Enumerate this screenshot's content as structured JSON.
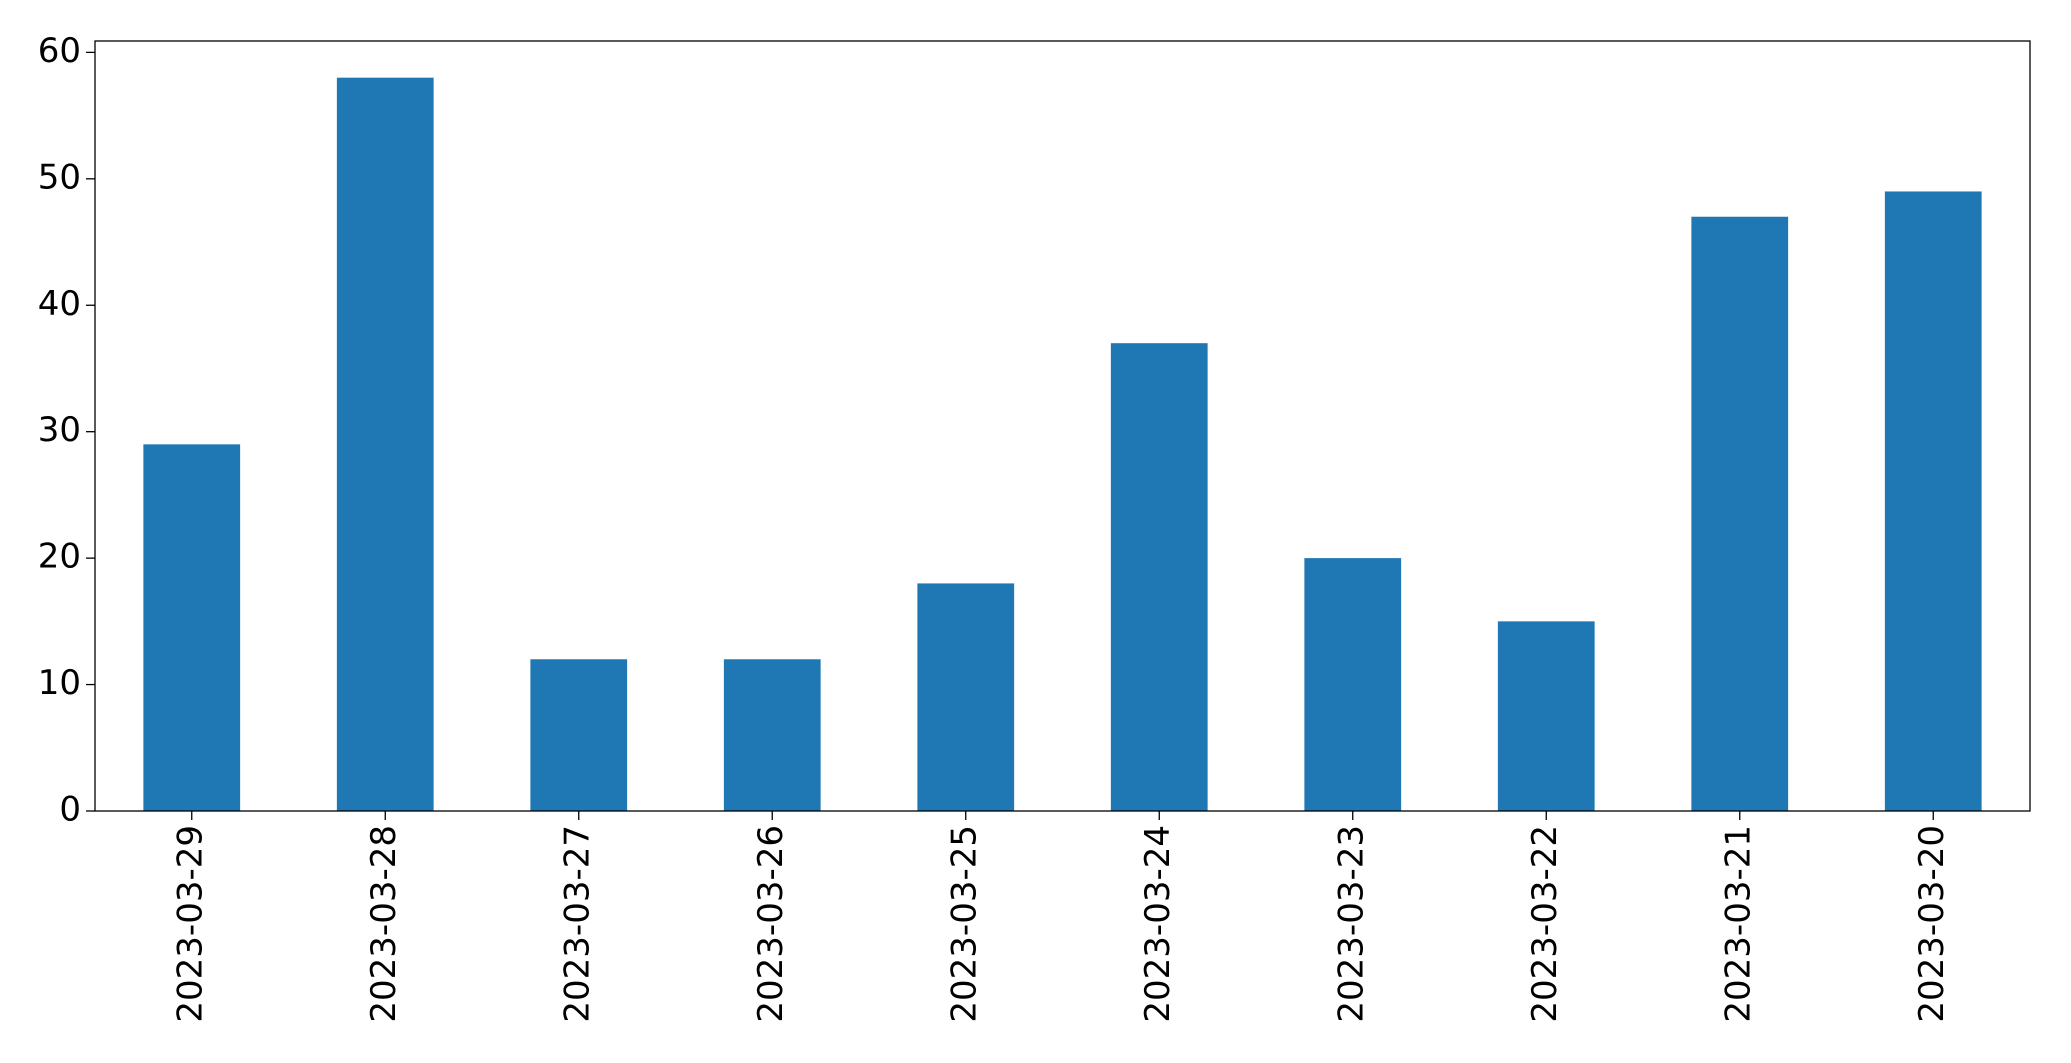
{
  "chart_data": {
    "type": "bar",
    "categories": [
      "2023-03-29",
      "2023-03-28",
      "2023-03-27",
      "2023-03-26",
      "2023-03-25",
      "2023-03-24",
      "2023-03-23",
      "2023-03-22",
      "2023-03-21",
      "2023-03-20"
    ],
    "values": [
      29,
      58,
      12,
      12,
      18,
      37,
      20,
      15,
      47,
      49
    ],
    "color": "#1f77b4",
    "ylim": [
      0,
      60.9
    ],
    "yticks": [
      0,
      10,
      20,
      30,
      40,
      50,
      60
    ],
    "grid": false
  }
}
